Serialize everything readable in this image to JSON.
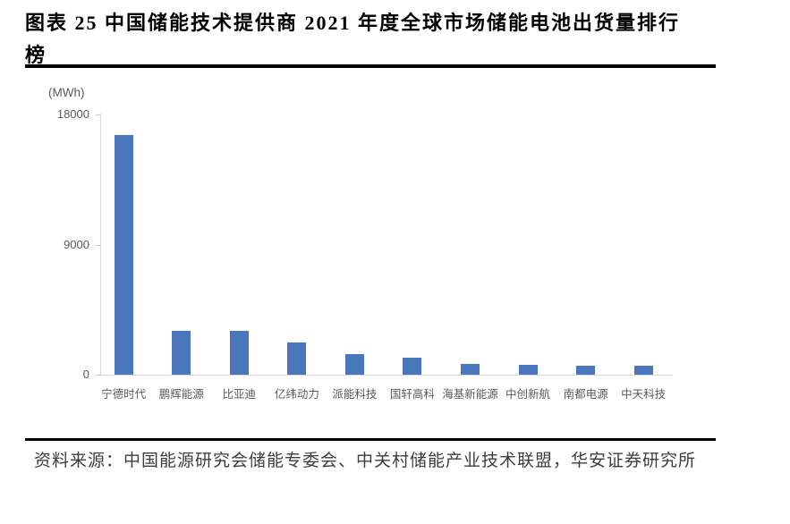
{
  "figure": {
    "title": "图表 25 中国储能技术提供商 2021 年度全球市场储能电池出货量排行榜",
    "source": "资料来源：中国能源研究会储能专委会、中关村储能产业技术联盟，华安证券研究所"
  },
  "chart_data": {
    "type": "bar",
    "title": "中国储能技术提供商2021年度全球市场储能电池出货量排行榜",
    "unit_label": "(MWh)",
    "categories": [
      "宁德时代",
      "鹏辉能源",
      "比亚迪",
      "亿纬动力",
      "派能科技",
      "国轩高科",
      "海基新能源",
      "中创新航",
      "南都电源",
      "中天科技"
    ],
    "values": [
      16600,
      3050,
      3000,
      2200,
      1400,
      1200,
      720,
      660,
      620,
      600
    ],
    "xlabel": "",
    "ylabel": "MWh",
    "ylim": [
      0,
      18000
    ],
    "yticks": [
      0,
      9000,
      18000
    ],
    "bar_color": "#4a76bc",
    "axis_color": "#d6d6d6",
    "tick_text_color": "#595959",
    "grid": false,
    "legend": false
  }
}
